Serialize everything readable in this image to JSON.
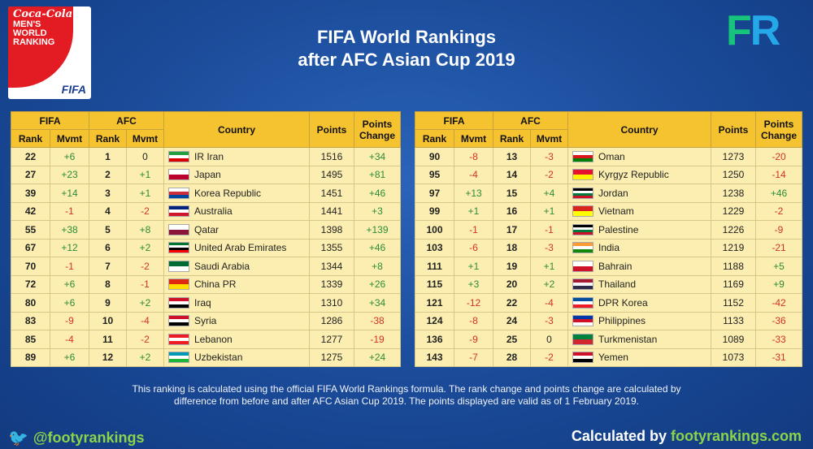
{
  "logo": {
    "brand": "Coca-Cola",
    "line1": "MEN'S",
    "line2": "WORLD",
    "line3": "RANKING",
    "fifa": "FIFA"
  },
  "corner_logo": {
    "f": "F",
    "r": "R"
  },
  "title": {
    "line1": "FIFA World Rankings",
    "line2": "after AFC Asian Cup 2019"
  },
  "headers": {
    "fifa": "FIFA",
    "afc": "AFC",
    "rank": "Rank",
    "mvmt": "Mvmt",
    "country": "Country",
    "points": "Points",
    "points_change": "Points Change"
  },
  "left_rows": [
    {
      "fifa_rank": "22",
      "fifa_mvmt": "+6",
      "afc_rank": "1",
      "afc_mvmt": "0",
      "country": "IR Iran",
      "points": "1516",
      "change": "+34",
      "flag": "iran-flag-icon",
      "flag_colors": [
        "#239f40",
        "#ffffff",
        "#da0000"
      ]
    },
    {
      "fifa_rank": "27",
      "fifa_mvmt": "+23",
      "afc_rank": "2",
      "afc_mvmt": "+1",
      "country": "Japan",
      "points": "1495",
      "change": "+81",
      "flag": "japan-flag-icon",
      "flag_colors": [
        "#ffffff",
        "#bc002d"
      ]
    },
    {
      "fifa_rank": "39",
      "fifa_mvmt": "+14",
      "afc_rank": "3",
      "afc_mvmt": "+1",
      "country": "Korea Republic",
      "points": "1451",
      "change": "+46",
      "flag": "korea-flag-icon",
      "flag_colors": [
        "#ffffff",
        "#cd2e3a",
        "#0047a0"
      ]
    },
    {
      "fifa_rank": "42",
      "fifa_mvmt": "-1",
      "afc_rank": "4",
      "afc_mvmt": "-2",
      "country": "Australia",
      "points": "1441",
      "change": "+3",
      "flag": "australia-flag-icon",
      "flag_colors": [
        "#00247d",
        "#ffffff",
        "#cf142b"
      ]
    },
    {
      "fifa_rank": "55",
      "fifa_mvmt": "+38",
      "afc_rank": "5",
      "afc_mvmt": "+8",
      "country": "Qatar",
      "points": "1398",
      "change": "+139",
      "flag": "qatar-flag-icon",
      "flag_colors": [
        "#ffffff",
        "#8a1538"
      ]
    },
    {
      "fifa_rank": "67",
      "fifa_mvmt": "+12",
      "afc_rank": "6",
      "afc_mvmt": "+2",
      "country": "United Arab Emirates",
      "points": "1355",
      "change": "+46",
      "flag": "uae-flag-icon",
      "flag_colors": [
        "#00732f",
        "#ffffff",
        "#000000",
        "#ff0000"
      ]
    },
    {
      "fifa_rank": "70",
      "fifa_mvmt": "-1",
      "afc_rank": "7",
      "afc_mvmt": "-2",
      "country": "Saudi Arabia",
      "points": "1344",
      "change": "+8",
      "flag": "saudi-flag-icon",
      "flag_colors": [
        "#006c35",
        "#ffffff"
      ]
    },
    {
      "fifa_rank": "72",
      "fifa_mvmt": "+6",
      "afc_rank": "8",
      "afc_mvmt": "-1",
      "country": "China PR",
      "points": "1339",
      "change": "+26",
      "flag": "china-flag-icon",
      "flag_colors": [
        "#de2910",
        "#ffde00"
      ]
    },
    {
      "fifa_rank": "80",
      "fifa_mvmt": "+6",
      "afc_rank": "9",
      "afc_mvmt": "+2",
      "country": "Iraq",
      "points": "1310",
      "change": "+34",
      "flag": "iraq-flag-icon",
      "flag_colors": [
        "#ce1126",
        "#ffffff",
        "#000000"
      ]
    },
    {
      "fifa_rank": "83",
      "fifa_mvmt": "-9",
      "afc_rank": "10",
      "afc_mvmt": "-4",
      "country": "Syria",
      "points": "1286",
      "change": "-38",
      "flag": "syria-flag-icon",
      "flag_colors": [
        "#ce1126",
        "#ffffff",
        "#000000"
      ]
    },
    {
      "fifa_rank": "85",
      "fifa_mvmt": "-4",
      "afc_rank": "11",
      "afc_mvmt": "-2",
      "country": "Lebanon",
      "points": "1277",
      "change": "-19",
      "flag": "lebanon-flag-icon",
      "flag_colors": [
        "#ed1c24",
        "#ffffff",
        "#ed1c24"
      ]
    },
    {
      "fifa_rank": "89",
      "fifa_mvmt": "+6",
      "afc_rank": "12",
      "afc_mvmt": "+2",
      "country": "Uzbekistan",
      "points": "1275",
      "change": "+24",
      "flag": "uzbekistan-flag-icon",
      "flag_colors": [
        "#0099b5",
        "#ffffff",
        "#1eb53a"
      ]
    }
  ],
  "right_rows": [
    {
      "fifa_rank": "90",
      "fifa_mvmt": "-8",
      "afc_rank": "13",
      "afc_mvmt": "-3",
      "country": "Oman",
      "points": "1273",
      "change": "-20",
      "flag": "oman-flag-icon",
      "flag_colors": [
        "#ffffff",
        "#db161b",
        "#008000"
      ]
    },
    {
      "fifa_rank": "95",
      "fifa_mvmt": "-4",
      "afc_rank": "14",
      "afc_mvmt": "-2",
      "country": "Kyrgyz Republic",
      "points": "1250",
      "change": "-14",
      "flag": "kyrgyz-flag-icon",
      "flag_colors": [
        "#e8112d",
        "#ffef00"
      ]
    },
    {
      "fifa_rank": "97",
      "fifa_mvmt": "+13",
      "afc_rank": "15",
      "afc_mvmt": "+4",
      "country": "Jordan",
      "points": "1238",
      "change": "+46",
      "flag": "jordan-flag-icon",
      "flag_colors": [
        "#000000",
        "#ffffff",
        "#007a3d",
        "#ce1126"
      ]
    },
    {
      "fifa_rank": "99",
      "fifa_mvmt": "+1",
      "afc_rank": "16",
      "afc_mvmt": "+1",
      "country": "Vietnam",
      "points": "1229",
      "change": "-2",
      "flag": "vietnam-flag-icon",
      "flag_colors": [
        "#da251d",
        "#ffff00"
      ]
    },
    {
      "fifa_rank": "100",
      "fifa_mvmt": "-1",
      "afc_rank": "17",
      "afc_mvmt": "-1",
      "country": "Palestine",
      "points": "1226",
      "change": "-9",
      "flag": "palestine-flag-icon",
      "flag_colors": [
        "#000000",
        "#ffffff",
        "#007a3d",
        "#ce1126"
      ]
    },
    {
      "fifa_rank": "103",
      "fifa_mvmt": "-6",
      "afc_rank": "18",
      "afc_mvmt": "-3",
      "country": "India",
      "points": "1219",
      "change": "-21",
      "flag": "india-flag-icon",
      "flag_colors": [
        "#ff9933",
        "#ffffff",
        "#138808"
      ]
    },
    {
      "fifa_rank": "111",
      "fifa_mvmt": "+1",
      "afc_rank": "19",
      "afc_mvmt": "+1",
      "country": "Bahrain",
      "points": "1188",
      "change": "+5",
      "flag": "bahrain-flag-icon",
      "flag_colors": [
        "#ffffff",
        "#ce1126"
      ]
    },
    {
      "fifa_rank": "115",
      "fifa_mvmt": "+3",
      "afc_rank": "20",
      "afc_mvmt": "+2",
      "country": "Thailand",
      "points": "1169",
      "change": "+9",
      "flag": "thailand-flag-icon",
      "flag_colors": [
        "#a51931",
        "#f4f5f8",
        "#2d2a4a"
      ]
    },
    {
      "fifa_rank": "121",
      "fifa_mvmt": "-12",
      "afc_rank": "22",
      "afc_mvmt": "-4",
      "country": "DPR Korea",
      "points": "1152",
      "change": "-42",
      "flag": "dpr-korea-flag-icon",
      "flag_colors": [
        "#024fa2",
        "#ffffff",
        "#ed1c27"
      ]
    },
    {
      "fifa_rank": "124",
      "fifa_mvmt": "-8",
      "afc_rank": "24",
      "afc_mvmt": "-3",
      "country": "Philippines",
      "points": "1133",
      "change": "-36",
      "flag": "philippines-flag-icon",
      "flag_colors": [
        "#0038a8",
        "#ce1126",
        "#ffffff"
      ]
    },
    {
      "fifa_rank": "136",
      "fifa_mvmt": "-9",
      "afc_rank": "25",
      "afc_mvmt": "0",
      "country": "Turkmenistan",
      "points": "1089",
      "change": "-33",
      "flag": "turkmenistan-flag-icon",
      "flag_colors": [
        "#00843d",
        "#d22630"
      ]
    },
    {
      "fifa_rank": "143",
      "fifa_mvmt": "-7",
      "afc_rank": "28",
      "afc_mvmt": "-2",
      "country": "Yemen",
      "points": "1073",
      "change": "-31",
      "flag": "yemen-flag-icon",
      "flag_colors": [
        "#ce1126",
        "#ffffff",
        "#000000"
      ]
    }
  ],
  "note": "This ranking is calculated using the official FIFA World Rankings formula. The rank change and points change are calculated by difference from before and after AFC Asian Cup 2019. The points displayed are valid as of 1 February 2019.",
  "footer": {
    "twitter_icon": "twitter-bird-icon",
    "handle": "@footyrankings",
    "calc_prefix": "Calculated by ",
    "calc_site": "footyrankings.com"
  }
}
